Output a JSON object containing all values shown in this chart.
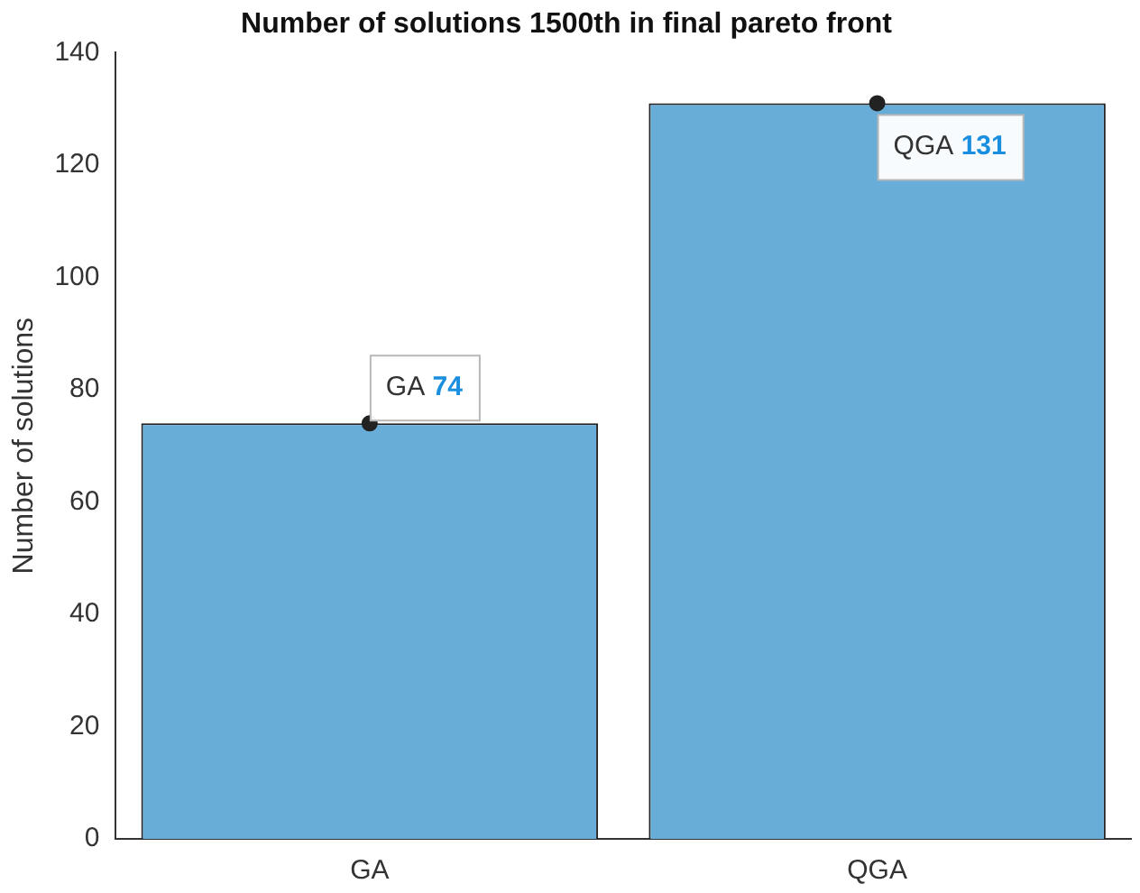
{
  "chart_data": {
    "type": "bar",
    "title": "Number of solutions 1500th in final pareto front",
    "ylabel": "Number of solutions",
    "categories": [
      "GA",
      "QGA"
    ],
    "series": [
      {
        "type": "bar",
        "color": "#68acd8",
        "values": [
          74,
          131
        ],
        "value_labels": [
          "74",
          "131"
        ]
      },
      {
        "type": "scatter",
        "color": "#222222",
        "x": [
          "GA",
          "QGA"
        ],
        "values": [
          74,
          131
        ]
      }
    ],
    "marker": "circle",
    "ylim": [
      0,
      140
    ],
    "yticks": [
      0,
      20,
      40,
      60,
      80,
      100,
      120,
      140
    ],
    "grid": false,
    "legend": false
  }
}
